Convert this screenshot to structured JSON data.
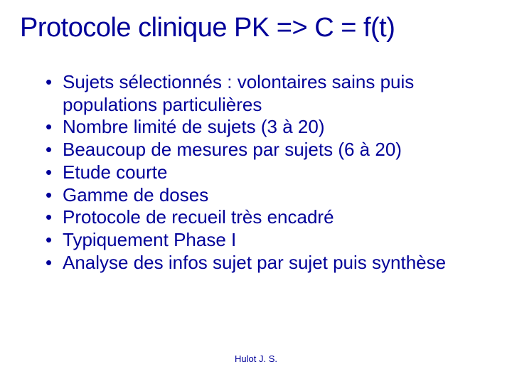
{
  "colors": {
    "title": "#000099",
    "body": "#000099",
    "footer": "#000099",
    "background": "#ffffff"
  },
  "title": "Protocole clinique PK => C = f(t)",
  "bullets": [
    "Sujets sélectionnés : volontaires sains puis populations particulières",
    "Nombre limité de sujets (3 à 20)",
    "Beaucoup de mesures par sujets (6 à 20)",
    "Etude courte",
    "Gamme de doses",
    "Protocole de recueil très encadré",
    "Typiquement Phase I",
    "Analyse des infos sujet par sujet puis synthèse"
  ],
  "footer": "Hulot J. S."
}
